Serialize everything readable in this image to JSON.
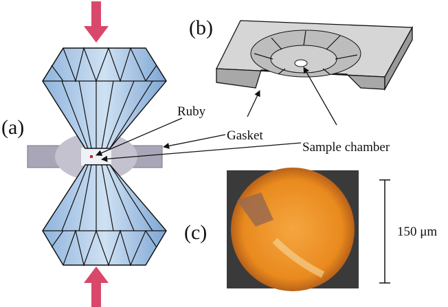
{
  "panels": {
    "a": "(a)",
    "b": "(b)",
    "c": "(c)"
  },
  "labels": {
    "ruby": "Ruby",
    "gasket": "Gasket",
    "sample_chamber": "Sample chamber",
    "scale": "150 μm"
  }
}
